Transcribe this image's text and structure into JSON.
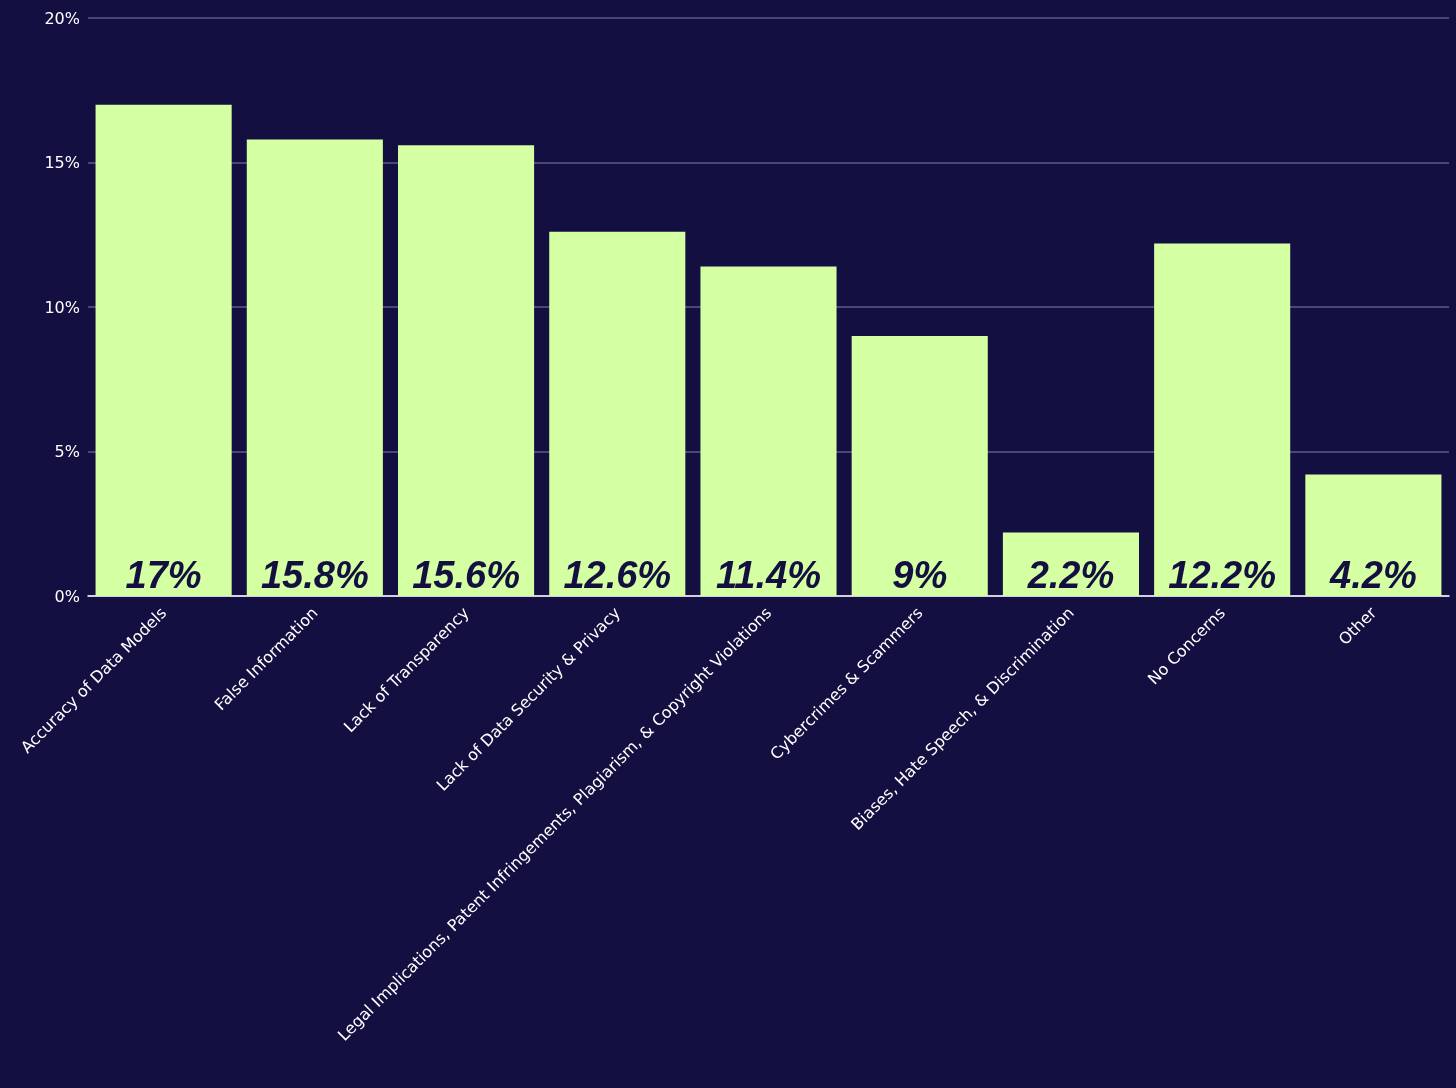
{
  "chart_data": {
    "type": "bar",
    "categories": [
      "Accuracy of Data Models",
      "False Information",
      "Lack of Transparency",
      "Lack of Data Security & Privacy",
      "Legal Implications, Patent Infringements, Plagiarism, & Copyright Violations",
      "Cybercrimes & Scammers",
      "Biases, Hate Speech, & Discrimination",
      "No Concerns",
      "Other"
    ],
    "values": [
      17,
      15.8,
      15.6,
      12.6,
      11.4,
      9,
      2.2,
      12.2,
      4.2
    ],
    "value_labels": [
      "17%",
      "15.8%",
      "15.6%",
      "12.6%",
      "11.4%",
      "9%",
      "2.2%",
      "12.2%",
      "4.2%"
    ],
    "color": "#d4ffa3",
    "ylim": [
      0,
      20
    ],
    "yticks": [
      {
        "value": 0,
        "label": "0%"
      },
      {
        "value": 5,
        "label": "5%"
      },
      {
        "value": 10,
        "label": "10%"
      },
      {
        "value": 15,
        "label": "15%"
      },
      {
        "value": 20,
        "label": "20%"
      }
    ],
    "grid": "y"
  }
}
